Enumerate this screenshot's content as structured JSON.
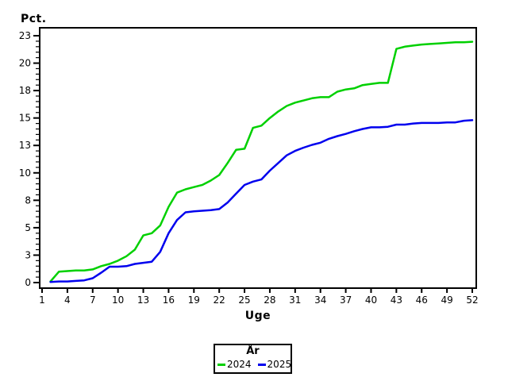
{
  "page": {
    "background": "#ffffff"
  },
  "chart_data": {
    "type": "line",
    "title": "Pct.",
    "xlabel": "Uge",
    "grid": false,
    "legend": {
      "title": "År",
      "position": "bottom-center",
      "entries": [
        {
          "label": "2024",
          "color": "#00d000"
        },
        {
          "label": "2025",
          "color": "#0000ee"
        }
      ]
    },
    "xlim": [
      1,
      52
    ],
    "ylim": [
      0,
      23.2
    ],
    "x_ticks": [
      1,
      4,
      7,
      10,
      13,
      16,
      19,
      22,
      25,
      28,
      31,
      34,
      37,
      40,
      43,
      46,
      49,
      52
    ],
    "y_major_ticks": [
      {
        "value": 0.0,
        "label": "0"
      },
      {
        "value": 2.5,
        "label": "3"
      },
      {
        "value": 5.0,
        "label": "5"
      },
      {
        "value": 7.5,
        "label": "8"
      },
      {
        "value": 10.0,
        "label": "10"
      },
      {
        "value": 12.5,
        "label": "13"
      },
      {
        "value": 15.0,
        "label": "15"
      },
      {
        "value": 17.5,
        "label": "18"
      },
      {
        "value": 20.0,
        "label": "20"
      },
      {
        "value": 22.5,
        "label": "23"
      }
    ],
    "y_minor_step": 0.5,
    "x": [
      2,
      3,
      4,
      5,
      6,
      7,
      8,
      9,
      10,
      11,
      12,
      13,
      14,
      15,
      16,
      17,
      18,
      19,
      20,
      21,
      22,
      23,
      24,
      25,
      26,
      27,
      28,
      29,
      30,
      31,
      32,
      33,
      34,
      35,
      36,
      37,
      38,
      39,
      40,
      41,
      42,
      43,
      44,
      45,
      46,
      47,
      48,
      49,
      50,
      51,
      52
    ],
    "series": [
      {
        "name": "2024",
        "color": "#00d000",
        "values": [
          0.1,
          1.0,
          1.05,
          1.1,
          1.1,
          1.2,
          1.5,
          1.7,
          2.0,
          2.4,
          3.0,
          4.3,
          4.5,
          5.2,
          6.9,
          8.2,
          8.5,
          8.7,
          8.9,
          9.3,
          9.8,
          10.9,
          12.1,
          12.2,
          14.1,
          14.3,
          15.0,
          15.6,
          16.1,
          16.4,
          16.6,
          16.8,
          16.9,
          16.9,
          17.4,
          17.6,
          17.7,
          18.0,
          18.1,
          18.2,
          18.2,
          21.3,
          21.5,
          21.6,
          21.7,
          21.75,
          21.8,
          21.85,
          21.9,
          21.9,
          21.95
        ]
      },
      {
        "name": "2025",
        "color": "#0000ee",
        "values": [
          0.05,
          0.1,
          0.1,
          0.15,
          0.2,
          0.4,
          0.9,
          1.45,
          1.45,
          1.5,
          1.7,
          1.8,
          1.9,
          2.8,
          4.5,
          5.7,
          6.4,
          6.5,
          6.55,
          6.6,
          6.7,
          7.3,
          8.1,
          8.9,
          9.2,
          9.4,
          10.2,
          10.9,
          11.6,
          12.0,
          12.3,
          12.55,
          12.75,
          13.1,
          13.35,
          13.55,
          13.8,
          14.0,
          14.15,
          14.15,
          14.2,
          14.4,
          14.4,
          14.5,
          14.55,
          14.55,
          14.55,
          14.6,
          14.6,
          14.75,
          14.8
        ]
      }
    ]
  }
}
